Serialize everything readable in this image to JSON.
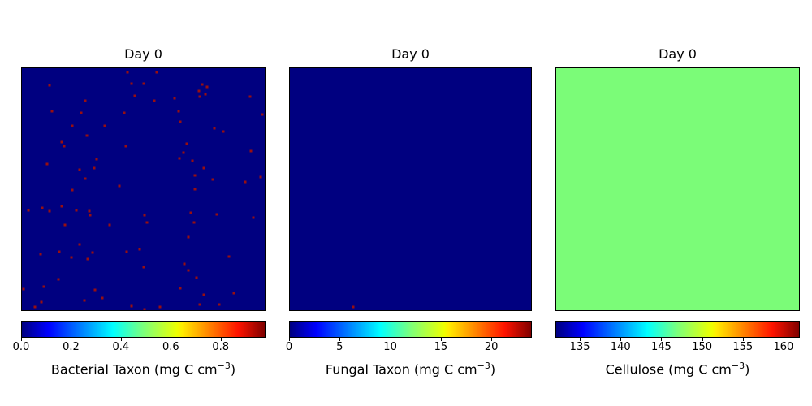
{
  "figure": {
    "background_color": "#ffffff",
    "panel_border_color": "#000000",
    "colormap": "jet",
    "jet_gradient_stops": [
      [
        "0%",
        "#000080"
      ],
      [
        "11%",
        "#0000ff"
      ],
      [
        "34%",
        "#00dbff"
      ],
      [
        "37.5%",
        "#00ffff"
      ],
      [
        "50%",
        "#7bff7b"
      ],
      [
        "64%",
        "#eeff00"
      ],
      [
        "66%",
        "#ffec00"
      ],
      [
        "89%",
        "#ff1300"
      ],
      [
        "100%",
        "#800000"
      ]
    ]
  },
  "chart_data": [
    {
      "type": "heatmap",
      "title": "Day 0",
      "colorbar_label": "Bacterial Taxon (mg C cm⁻³)",
      "label_main": "Bacterial Taxon (mg C cm",
      "label_exp": "−3",
      "label_close": ")",
      "colormap": "jet",
      "vmin": 0.0,
      "vmax": 0.98,
      "colorbar_ticks": [
        "0.0",
        "0.2",
        "0.4",
        "0.6",
        "0.8"
      ],
      "colorbar_tick_values": [
        0.0,
        0.2,
        0.4,
        0.6,
        0.8
      ],
      "field_color": "#000080",
      "points_color": "#990f0f",
      "points": [
        [
          0.435,
          0.017
        ],
        [
          0.555,
          0.017
        ],
        [
          0.113,
          0.07
        ],
        [
          0.452,
          0.063
        ],
        [
          0.502,
          0.063
        ],
        [
          0.741,
          0.067
        ],
        [
          0.764,
          0.077
        ],
        [
          0.728,
          0.093
        ],
        [
          0.757,
          0.107
        ],
        [
          0.734,
          0.117
        ],
        [
          0.94,
          0.117
        ],
        [
          0.465,
          0.113
        ],
        [
          0.628,
          0.123
        ],
        [
          0.545,
          0.133
        ],
        [
          0.262,
          0.133
        ],
        [
          0.123,
          0.177
        ],
        [
          0.243,
          0.183
        ],
        [
          0.422,
          0.183
        ],
        [
          0.645,
          0.177
        ],
        [
          0.99,
          0.19
        ],
        [
          0.651,
          0.223
        ],
        [
          0.209,
          0.237
        ],
        [
          0.791,
          0.247
        ],
        [
          0.831,
          0.263
        ],
        [
          0.342,
          0.237
        ],
        [
          0.266,
          0.28
        ],
        [
          0.163,
          0.307
        ],
        [
          0.173,
          0.323
        ],
        [
          0.678,
          0.313
        ],
        [
          0.944,
          0.343
        ],
        [
          0.429,
          0.323
        ],
        [
          0.664,
          0.35
        ],
        [
          0.648,
          0.373
        ],
        [
          0.704,
          0.383
        ],
        [
          0.103,
          0.397
        ],
        [
          0.309,
          0.377
        ],
        [
          0.748,
          0.413
        ],
        [
          0.236,
          0.42
        ],
        [
          0.299,
          0.413
        ],
        [
          0.983,
          0.45
        ],
        [
          0.714,
          0.443
        ],
        [
          0.787,
          0.46
        ],
        [
          0.92,
          0.47
        ],
        [
          0.262,
          0.457
        ],
        [
          0.402,
          0.487
        ],
        [
          0.209,
          0.503
        ],
        [
          0.711,
          0.5
        ],
        [
          0.027,
          0.587
        ],
        [
          0.083,
          0.577
        ],
        [
          0.113,
          0.59
        ],
        [
          0.163,
          0.57
        ],
        [
          0.223,
          0.587
        ],
        [
          0.279,
          0.59
        ],
        [
          0.282,
          0.607
        ],
        [
          0.505,
          0.607
        ],
        [
          0.515,
          0.637
        ],
        [
          0.694,
          0.597
        ],
        [
          0.708,
          0.637
        ],
        [
          0.804,
          0.603
        ],
        [
          0.953,
          0.617
        ],
        [
          0.176,
          0.647
        ],
        [
          0.362,
          0.647
        ],
        [
          0.684,
          0.697
        ],
        [
          0.236,
          0.727
        ],
        [
          0.076,
          0.767
        ],
        [
          0.153,
          0.76
        ],
        [
          0.203,
          0.783
        ],
        [
          0.272,
          0.787
        ],
        [
          0.292,
          0.763
        ],
        [
          0.432,
          0.76
        ],
        [
          0.485,
          0.747
        ],
        [
          0.854,
          0.777
        ],
        [
          0.502,
          0.823
        ],
        [
          0.668,
          0.81
        ],
        [
          0.684,
          0.837
        ],
        [
          0.718,
          0.867
        ],
        [
          0.15,
          0.873
        ],
        [
          0.09,
          0.903
        ],
        [
          0.007,
          0.913
        ],
        [
          0.302,
          0.917
        ],
        [
          0.651,
          0.91
        ],
        [
          0.748,
          0.937
        ],
        [
          0.874,
          0.93
        ],
        [
          0.08,
          0.967
        ],
        [
          0.053,
          0.987
        ],
        [
          0.259,
          0.96
        ],
        [
          0.332,
          0.95
        ],
        [
          0.452,
          0.983
        ],
        [
          0.505,
          0.997
        ],
        [
          0.568,
          0.987
        ],
        [
          0.734,
          0.977
        ],
        [
          0.814,
          0.977
        ]
      ]
    },
    {
      "type": "heatmap",
      "title": "Day 0",
      "colorbar_label": "Fungal Taxon (mg C cm⁻³)",
      "label_main": "Fungal Taxon (mg C cm",
      "label_exp": "−3",
      "label_close": ")",
      "colormap": "jet",
      "vmin": 0,
      "vmax": 24,
      "colorbar_ticks": [
        "0",
        "5",
        "10",
        "15",
        "20"
      ],
      "colorbar_tick_values": [
        0,
        5,
        10,
        15,
        20
      ],
      "field_color": "#000080",
      "points_color": "#990f0f",
      "points": [
        [
          0.262,
          0.986
        ]
      ]
    },
    {
      "type": "heatmap",
      "title": "Day 0",
      "colorbar_label": "Cellulose (mg C cm⁻³)",
      "label_main": "Cellulose (mg C cm",
      "label_exp": "−3",
      "label_close": ")",
      "colormap": "jet",
      "vmin": 132,
      "vmax": 162,
      "colorbar_ticks": [
        "135",
        "140",
        "145",
        "150",
        "155",
        "160"
      ],
      "colorbar_tick_values": [
        135,
        140,
        145,
        150,
        155,
        160
      ],
      "field_color": "#7bfc78",
      "points_color": null,
      "points": []
    }
  ]
}
